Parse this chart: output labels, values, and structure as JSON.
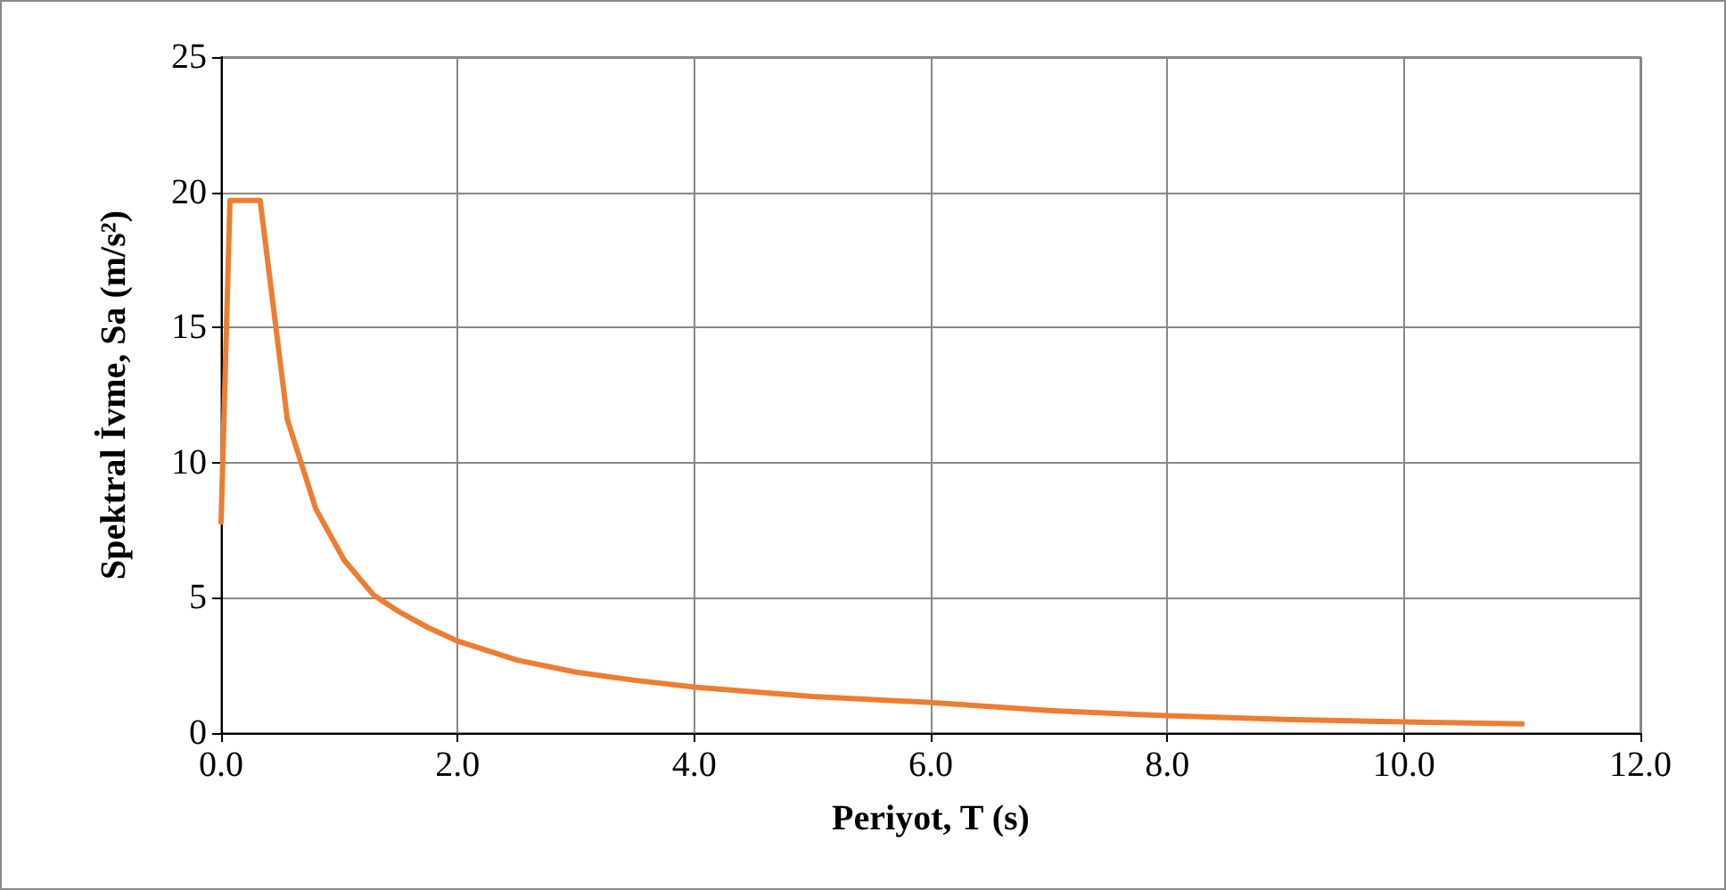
{
  "chart_data": {
    "type": "line",
    "xlabel": "Periyot, T (s)",
    "ylabel": "Spektral İvme, Sa (m/s²)",
    "xlim": [
      0,
      12
    ],
    "ylim": [
      0,
      25
    ],
    "xticks": [
      {
        "value": 0,
        "label": "0.0"
      },
      {
        "value": 2,
        "label": "2.0"
      },
      {
        "value": 4,
        "label": "4.0"
      },
      {
        "value": 6,
        "label": "6.0"
      },
      {
        "value": 8,
        "label": "8.0"
      },
      {
        "value": 10,
        "label": "10.0"
      },
      {
        "value": 12,
        "label": "12.0"
      }
    ],
    "yticks": [
      0,
      5,
      10,
      15,
      20,
      25
    ],
    "grid": true,
    "marker": "none",
    "line_style": "solid",
    "series": [
      {
        "color": "#ed7d31",
        "x": [
          0,
          0.075,
          0.33,
          0.56,
          0.8,
          1.04,
          1.29,
          1.5,
          1.75,
          2,
          2.5,
          3,
          3.5,
          4,
          5,
          6,
          7,
          8,
          9,
          10,
          11
        ],
        "values": [
          7.8,
          19.7,
          19.7,
          11.6,
          8.3,
          6.4,
          5.1,
          4.5,
          3.9,
          3.4,
          2.7,
          2.25,
          1.95,
          1.7,
          1.35,
          1.13,
          0.83,
          0.64,
          0.5,
          0.41,
          0.34
        ]
      }
    ]
  }
}
